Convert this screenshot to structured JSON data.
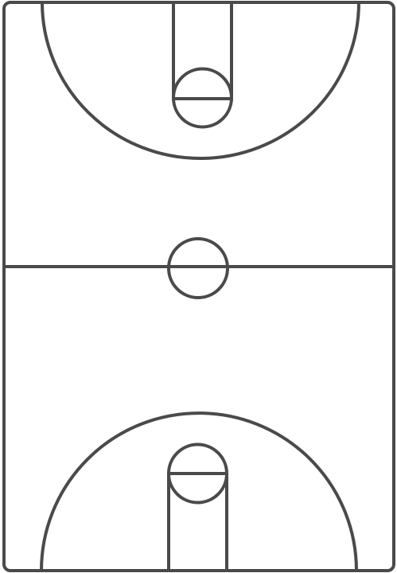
{
  "diagram": {
    "type": "basketball-court",
    "orientation": "vertical",
    "colors": {
      "line": "#4a4a4a",
      "background": "#ffffff"
    }
  }
}
